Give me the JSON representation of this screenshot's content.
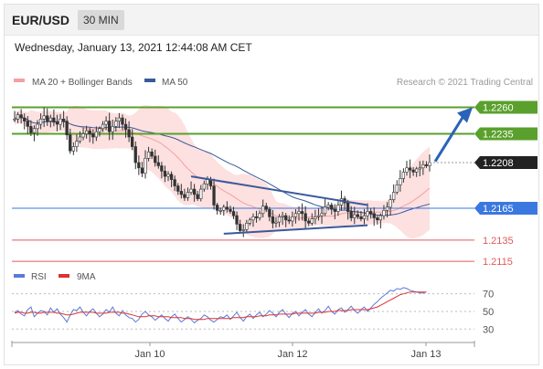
{
  "header": {
    "symbol": "EUR/USD",
    "timeframe": "30 MIN",
    "datetime": "Wednesday, January 13, 2021 12:44:08 AM CET"
  },
  "legend": {
    "ma20_bb": "MA 20 + Bollinger Bands",
    "ma50": "MA 50",
    "credit": "Research © 2021 Trading Central",
    "rsi": "RSI",
    "rsi_ma": "9MA"
  },
  "colors": {
    "candle": "#333333",
    "bollinger_fill": "#fde0e0",
    "ma20": "#f4a0a0",
    "ma50": "#3a5a9a",
    "resistance": "#5aa02c",
    "pivot": "#3a78e0",
    "support": "#e05a5a",
    "triangle": "#3a5a9a",
    "arrow": "#2a62b8",
    "price_tag": "#222222",
    "rsi": "#5a7ad8",
    "rsi_ma": "#e03030"
  },
  "chart_data": [
    {
      "type": "candlestick",
      "title": "EUR/USD 30 MIN",
      "ylim": [
        1.211,
        1.2275
      ],
      "x_ticks": [
        "Jan 10",
        "Jan 12",
        "Jan 13"
      ],
      "last_price": 1.2208,
      "levels": [
        {
          "label": "1.2260",
          "value": 1.226,
          "kind": "resistance"
        },
        {
          "label": "1.2235",
          "value": 1.2235,
          "kind": "resistance"
        },
        {
          "label": "1.2165",
          "value": 1.2165,
          "kind": "pivot"
        },
        {
          "label": "1.2135",
          "value": 1.2135,
          "kind": "support"
        },
        {
          "label": "1.2115",
          "value": 1.2115,
          "kind": "support"
        }
      ],
      "price_label": "1.2208",
      "closes": [
        1.2249,
        1.2253,
        1.225,
        1.2247,
        1.2242,
        1.2236,
        1.224,
        1.2244,
        1.2249,
        1.2252,
        1.2247,
        1.225,
        1.2246,
        1.2244,
        1.2249,
        1.2247,
        1.2234,
        1.2219,
        1.2223,
        1.2228,
        1.2232,
        1.2235,
        1.2238,
        1.2235,
        1.2232,
        1.2237,
        1.224,
        1.2244,
        1.2247,
        1.2237,
        1.2242,
        1.2247,
        1.225,
        1.2244,
        1.2239,
        1.2232,
        1.2223,
        1.2208,
        1.2203,
        1.2198,
        1.2212,
        1.2218,
        1.2214,
        1.2208,
        1.2205,
        1.22,
        1.2195,
        1.2197,
        1.2192,
        1.2186,
        1.2181,
        1.2178,
        1.2175,
        1.218,
        1.2183,
        1.2178,
        1.2174,
        1.2183,
        1.2188,
        1.2192,
        1.2186,
        1.2168,
        1.2163,
        1.2163,
        1.2166,
        1.2164,
        1.2162,
        1.2158,
        1.215,
        1.2144,
        1.2145,
        1.2151,
        1.2154,
        1.2157,
        1.2156,
        1.216,
        1.2167,
        1.2164,
        1.2157,
        1.2151,
        1.2152,
        1.2157,
        1.2158,
        1.2154,
        1.2153,
        1.2157,
        1.216,
        1.2162,
        1.216,
        1.2153,
        1.2151,
        1.2155,
        1.2157,
        1.2158,
        1.216,
        1.2166,
        1.2168,
        1.2164,
        1.2162,
        1.2168,
        1.2174,
        1.217,
        1.2162,
        1.2156,
        1.2159,
        1.2157,
        1.2155,
        1.2158,
        1.2162,
        1.216,
        1.2156,
        1.2154,
        1.2158,
        1.2163,
        1.2166,
        1.2173,
        1.218,
        1.2187,
        1.2193,
        1.2199,
        1.2203,
        1.2201,
        1.2199,
        1.2202,
        1.2203,
        1.2206,
        1.2205,
        1.2208
      ]
    },
    {
      "type": "line",
      "title": "RSI",
      "ylim": [
        22,
        80
      ],
      "y_ticks": [
        70,
        50,
        30
      ],
      "series": [
        {
          "name": "RSI",
          "values": [
            49,
            51,
            47,
            45,
            52,
            55,
            44,
            48,
            51,
            50,
            46,
            54,
            49,
            53,
            47,
            43,
            38,
            46,
            52,
            51,
            55,
            49,
            45,
            50,
            53,
            48,
            44,
            47,
            52,
            49,
            55,
            48,
            45,
            51,
            46,
            43,
            42,
            38,
            41,
            47,
            50,
            46,
            44,
            40,
            43,
            46,
            42,
            39,
            44,
            47,
            42,
            38,
            41,
            44,
            41,
            37,
            40,
            42,
            46,
            44,
            40,
            38,
            41,
            44,
            43,
            46,
            41,
            45,
            49,
            43,
            39,
            44,
            47,
            42,
            46,
            49,
            44,
            47,
            51,
            48,
            44,
            49,
            52,
            47,
            43,
            48,
            50,
            45,
            49,
            52,
            47,
            44,
            49,
            53,
            48,
            51,
            56,
            50,
            47,
            52,
            54,
            49,
            52,
            56,
            51,
            48,
            52,
            55,
            50,
            54,
            58,
            61,
            65,
            68,
            71,
            74,
            73,
            76,
            75,
            77,
            76,
            74,
            73,
            72,
            71,
            71,
            72
          ]
        },
        {
          "name": "9MA",
          "values": [
            48,
            49,
            49,
            48,
            48,
            49,
            49,
            48,
            48,
            49,
            49,
            49,
            49,
            48,
            48,
            47,
            46,
            46,
            47,
            48,
            49,
            49,
            49,
            49,
            49,
            48,
            48,
            48,
            48,
            49,
            49,
            49,
            49,
            48,
            48,
            47,
            46,
            45,
            44,
            44,
            44,
            45,
            45,
            45,
            44,
            44,
            44,
            44,
            43,
            43,
            43,
            43,
            42,
            42,
            42,
            41,
            41,
            41,
            41,
            42,
            42,
            42,
            42,
            42,
            42,
            42,
            42,
            43,
            43,
            43,
            43,
            44,
            44,
            44,
            44,
            45,
            45,
            45,
            46,
            46,
            46,
            47,
            47,
            47,
            47,
            47,
            48,
            48,
            48,
            48,
            48,
            48,
            48,
            49,
            49,
            49,
            50,
            50,
            50,
            51,
            51,
            51,
            51,
            52,
            52,
            52,
            52,
            52,
            52,
            53,
            54,
            55,
            57,
            59,
            61,
            63,
            65,
            67,
            69,
            70,
            71,
            72,
            72,
            72,
            72,
            72,
            72
          ]
        }
      ]
    }
  ]
}
